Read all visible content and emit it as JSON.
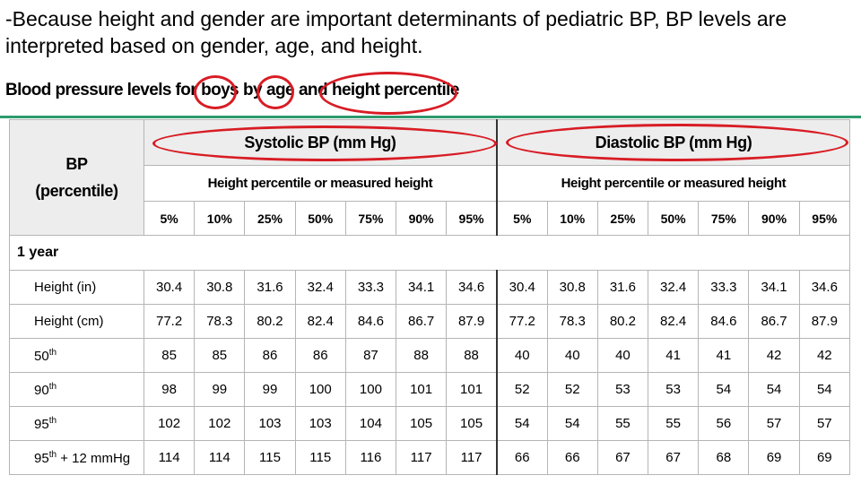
{
  "intro_text": "-Because height and gender are important determinants of pediatric BP, BP levels are interpreted based on gender, age, and height.",
  "subtitle": {
    "part1": "Blood pressure levels for",
    "part2": "boys",
    "part3": "by",
    "part4": "age",
    "part5": "and",
    "part6": "height percentile"
  },
  "table": {
    "bp_label": "BP",
    "bp_sublabel": "(percentile)",
    "systolic_header": "Systolic BP (mm Hg)",
    "diastolic_header": "Diastolic BP (mm Hg)",
    "height_header_systolic": "Height percentile or measured height",
    "height_header_diastolic": "Height percentile or measured height",
    "percentiles_systolic": [
      "5%",
      "10%",
      "25%",
      "50%",
      "75%",
      "90%",
      "95%"
    ],
    "percentiles_diastolic": [
      "5%",
      "10%",
      "25%",
      "50%",
      "75%",
      "90%",
      "95%"
    ],
    "section": "1 year",
    "rows": [
      {
        "label": "Height (in)",
        "sup": "",
        "suffix": "",
        "values": [
          "30.4",
          "30.8",
          "31.6",
          "32.4",
          "33.3",
          "34.1",
          "34.6",
          "30.4",
          "30.8",
          "31.6",
          "32.4",
          "33.3",
          "34.1",
          "34.6"
        ]
      },
      {
        "label": "Height (cm)",
        "sup": "",
        "suffix": "",
        "values": [
          "77.2",
          "78.3",
          "80.2",
          "82.4",
          "84.6",
          "86.7",
          "87.9",
          "77.2",
          "78.3",
          "80.2",
          "82.4",
          "84.6",
          "86.7",
          "87.9"
        ]
      },
      {
        "label": "50",
        "sup": "th",
        "suffix": "",
        "values": [
          "85",
          "85",
          "86",
          "86",
          "87",
          "88",
          "88",
          "40",
          "40",
          "40",
          "41",
          "41",
          "42",
          "42"
        ]
      },
      {
        "label": "90",
        "sup": "th",
        "suffix": "",
        "values": [
          "98",
          "99",
          "99",
          "100",
          "100",
          "101",
          "101",
          "52",
          "52",
          "53",
          "53",
          "54",
          "54",
          "54"
        ]
      },
      {
        "label": "95",
        "sup": "th",
        "suffix": "",
        "values": [
          "102",
          "102",
          "103",
          "103",
          "104",
          "105",
          "105",
          "54",
          "54",
          "55",
          "55",
          "56",
          "57",
          "57"
        ]
      },
      {
        "label": "95",
        "sup": "th",
        "suffix": " + 12 mmHg",
        "values": [
          "114",
          "114",
          "115",
          "115",
          "116",
          "117",
          "117",
          "66",
          "66",
          "67",
          "67",
          "68",
          "69",
          "69"
        ]
      }
    ]
  },
  "colors": {
    "highlight_circle": "#d81c24",
    "divider_rule": "#2e9a6e",
    "header_gray": "#ededed"
  }
}
